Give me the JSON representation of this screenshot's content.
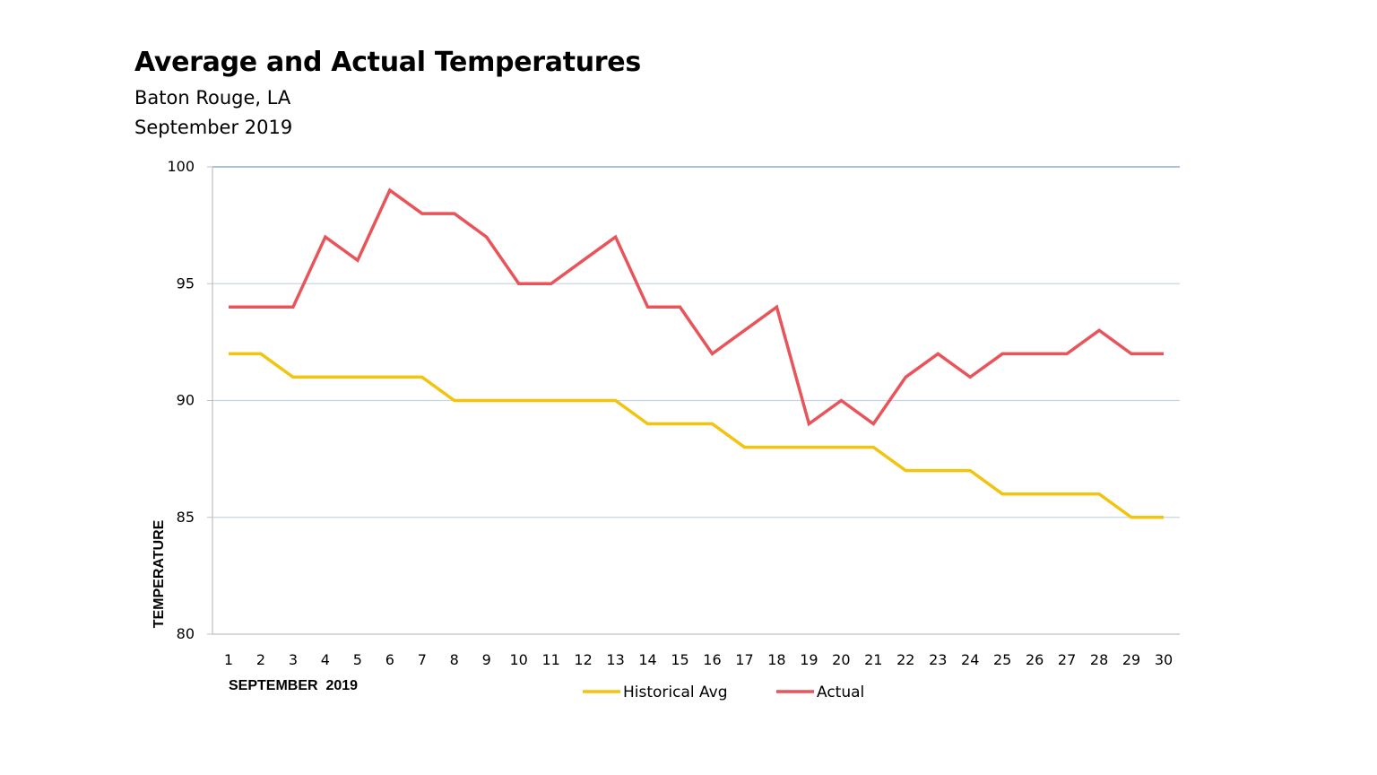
{
  "chart_data": {
    "type": "line",
    "title": "Average and Actual Temperatures",
    "subtitle_lines": [
      "Baton Rouge, LA",
      "September 2019"
    ],
    "xlabel": "SEPTEMBER  2019",
    "ylabel": "TEMPERATURE",
    "x": [
      1,
      2,
      3,
      4,
      5,
      6,
      7,
      8,
      9,
      10,
      11,
      12,
      13,
      14,
      15,
      16,
      17,
      18,
      19,
      20,
      21,
      22,
      23,
      24,
      25,
      26,
      27,
      28,
      29,
      30
    ],
    "ylim": [
      80,
      100
    ],
    "yticks": [
      80,
      85,
      90,
      95,
      100
    ],
    "grid": true,
    "legend_position": "bottom",
    "series": [
      {
        "name": "Historical Avg",
        "color": "#F2C40F",
        "values": [
          92,
          92,
          91,
          91,
          91,
          91,
          91,
          90,
          90,
          90,
          90,
          90,
          90,
          89,
          89,
          89,
          88,
          88,
          88,
          88,
          88,
          87,
          87,
          87,
          86,
          86,
          86,
          86,
          85,
          85
        ]
      },
      {
        "name": "Actual",
        "color": "#E8545A",
        "values": [
          94,
          94,
          94,
          97,
          96,
          99,
          98,
          98,
          97,
          95,
          95,
          96,
          97,
          94,
          94,
          92,
          93,
          94,
          89,
          90,
          89,
          91,
          92,
          91,
          92,
          92,
          92,
          93,
          92,
          92
        ]
      }
    ],
    "colors": {
      "gridline": "#C9D5E6",
      "top_gridline": "#8EA9DB",
      "axis": "#BFBFBF"
    }
  }
}
